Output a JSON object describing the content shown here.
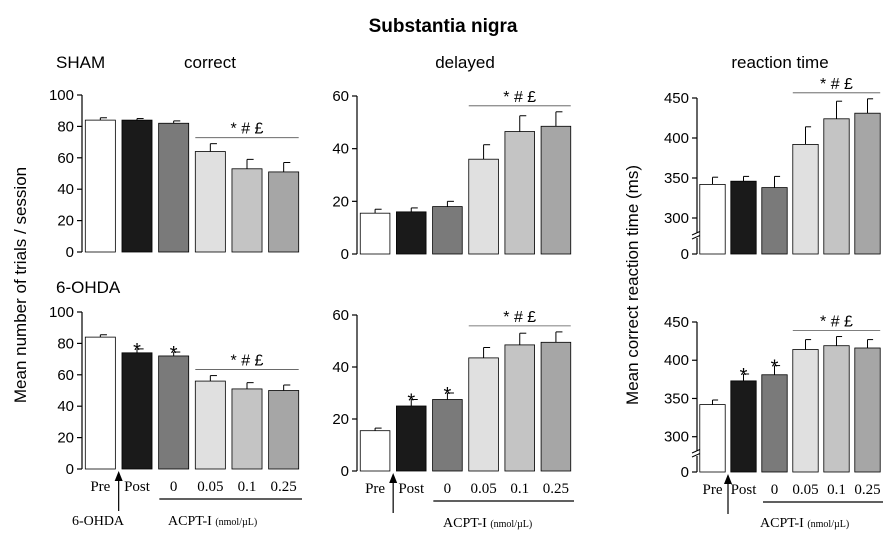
{
  "figure": {
    "title": "Substantia nigra",
    "row_labels": [
      "SHAM",
      "6-OHDA"
    ],
    "y_label_left": "Mean number of trials / session",
    "y_label_right": "Mean correct reaction time (ms)",
    "significance": "* # £",
    "x_tick_labels": [
      "Pre",
      "Post",
      "0",
      "0.05",
      "0.1",
      "0.25"
    ],
    "lesion_label": "6-OHDA",
    "drug_label": "ACPT-I",
    "drug_units": "(nmol/µL)",
    "bar_colors": [
      "#ffffff",
      "#1a1a1a",
      "#7a7a7a",
      "#e0e0e0",
      "#c4c4c4",
      "#a6a6a6"
    ]
  },
  "chart_data": [
    {
      "type": "bar",
      "panel": "SHAM",
      "title": "correct",
      "categories": [
        "Pre",
        "Post",
        "0",
        "0.05",
        "0.1",
        "0.25"
      ],
      "values": [
        84,
        84,
        82,
        64,
        53,
        51
      ],
      "errors": [
        1.5,
        1,
        1.5,
        5,
        6,
        6
      ],
      "ylim": [
        0,
        100
      ],
      "yticks": [
        0,
        20,
        40,
        60,
        80,
        100
      ],
      "significance": "* # £",
      "star_bars": []
    },
    {
      "type": "bar",
      "panel": "SHAM",
      "title": "delayed",
      "categories": [
        "Pre",
        "Post",
        "0",
        "0.05",
        "0.1",
        "0.25"
      ],
      "values": [
        15.5,
        16,
        18,
        36,
        46.5,
        48.5
      ],
      "errors": [
        1.5,
        1.5,
        2,
        5.5,
        6,
        5.5
      ],
      "ylim": [
        0,
        60
      ],
      "yticks": [
        0,
        20,
        40,
        60
      ],
      "significance": "* # £",
      "star_bars": []
    },
    {
      "type": "bar",
      "panel": "SHAM",
      "title": "reaction time",
      "categories": [
        "Pre",
        "Post",
        "0",
        "0.05",
        "0.1",
        "0.25"
      ],
      "values": [
        342,
        346,
        338,
        392,
        424,
        431
      ],
      "errors": [
        9,
        6,
        14,
        22,
        22,
        18
      ],
      "ylim": [
        0,
        450
      ],
      "yticks": [
        0,
        300,
        350,
        400,
        450
      ],
      "axis_break": [
        0,
        280
      ],
      "significance": "* # £",
      "star_bars": []
    },
    {
      "type": "bar",
      "panel": "6-OHDA",
      "title": "",
      "categories": [
        "Pre",
        "Post",
        "0",
        "0.05",
        "0.1",
        "0.25"
      ],
      "values": [
        84,
        74,
        72,
        56,
        51,
        50
      ],
      "errors": [
        1.5,
        2.5,
        2.5,
        3.5,
        4,
        3.5
      ],
      "ylim": [
        0,
        100
      ],
      "yticks": [
        0,
        20,
        40,
        60,
        80,
        100
      ],
      "significance": "* # £",
      "star_bars": [
        1,
        2
      ]
    },
    {
      "type": "bar",
      "panel": "6-OHDA",
      "title": "",
      "categories": [
        "Pre",
        "Post",
        "0",
        "0.05",
        "0.1",
        "0.25"
      ],
      "values": [
        15.5,
        25,
        27.5,
        43.5,
        48.5,
        49.5
      ],
      "errors": [
        1,
        2.5,
        2.5,
        4,
        4.5,
        4
      ],
      "ylim": [
        0,
        60
      ],
      "yticks": [
        0,
        20,
        40,
        60
      ],
      "significance": "* # £",
      "star_bars": [
        1,
        2
      ]
    },
    {
      "type": "bar",
      "panel": "6-OHDA",
      "title": "",
      "categories": [
        "Pre",
        "Post",
        "0",
        "0.05",
        "0.1",
        "0.25"
      ],
      "values": [
        342,
        373,
        381,
        414,
        419,
        416
      ],
      "errors": [
        6,
        9,
        12,
        13,
        12,
        11
      ],
      "ylim": [
        0,
        450
      ],
      "yticks": [
        0,
        300,
        350,
        400,
        450
      ],
      "axis_break": [
        0,
        280
      ],
      "significance": "* # £",
      "star_bars": [
        1,
        2
      ]
    }
  ]
}
